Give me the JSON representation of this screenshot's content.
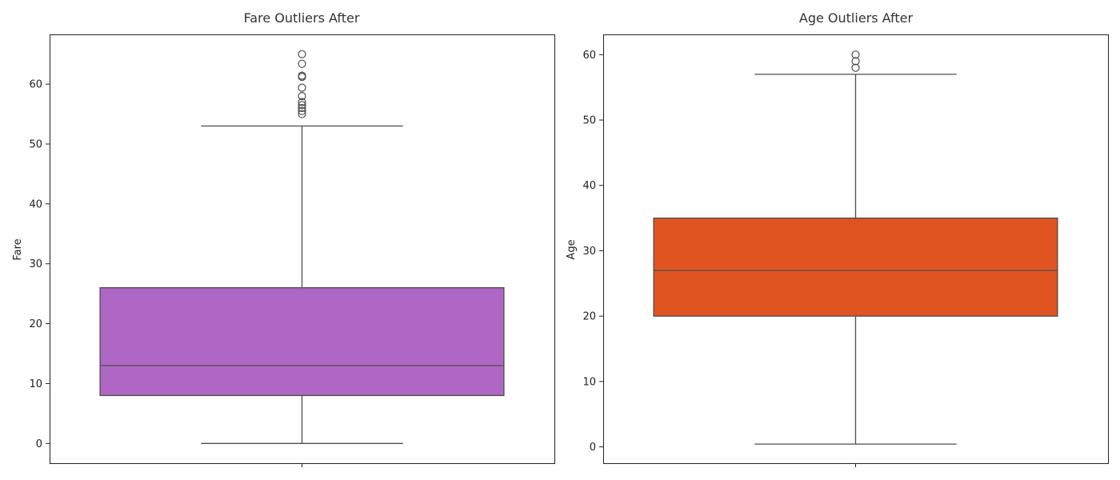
{
  "chart_data": [
    {
      "type": "box",
      "title": "Fare Outliers After",
      "xlabel": "",
      "ylabel": "Fare",
      "ylim": [
        -3.3,
        68.3
      ],
      "yticks": [
        0,
        10,
        20,
        30,
        40,
        50,
        60
      ],
      "color": "#b066c4",
      "grid": false,
      "box": {
        "whisker_low": 0,
        "q1": 8,
        "median": 13,
        "q3": 26,
        "whisker_high": 53
      },
      "outliers": [
        55.0,
        55.5,
        56.0,
        56.5,
        57.0,
        58.0,
        59.4,
        61.2,
        61.4,
        63.4,
        65.0
      ]
    },
    {
      "type": "box",
      "title": "Age Outliers After",
      "xlabel": "",
      "ylabel": "Age",
      "ylim": [
        -2.5,
        63.1
      ],
      "yticks": [
        0,
        10,
        20,
        30,
        40,
        50,
        60
      ],
      "color": "#e05422",
      "grid": false,
      "box": {
        "whisker_low": 0.42,
        "q1": 20,
        "median": 27,
        "q3": 35,
        "whisker_high": 57
      },
      "outliers": [
        58,
        59,
        60
      ]
    }
  ]
}
